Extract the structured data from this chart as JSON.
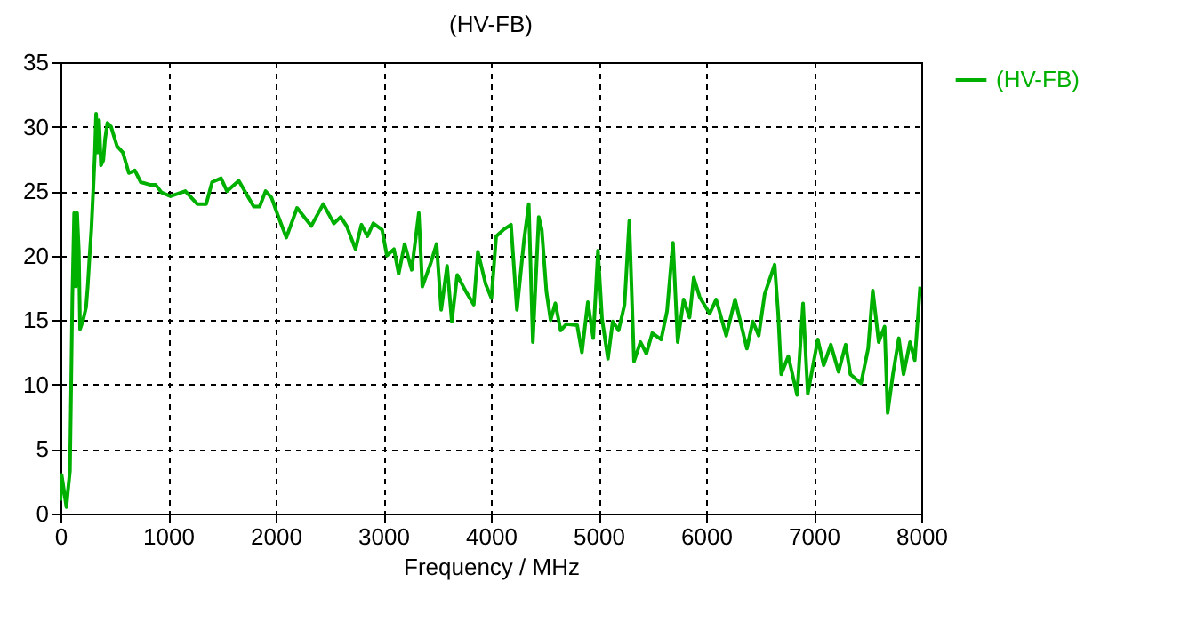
{
  "chart_data": {
    "type": "line",
    "title": "(HV-FB)",
    "xlabel": "Frequency / MHz",
    "x": [
      0,
      11,
      55,
      72,
      88,
      99,
      110,
      127,
      144,
      155,
      171,
      182,
      210,
      238,
      254,
      271,
      287,
      304,
      320,
      331,
      348,
      359,
      376,
      398,
      414,
      436,
      470,
      525,
      580,
      635,
      691,
      746,
      829,
      884,
      939,
      1022,
      1160,
      1271,
      1354,
      1409,
      1492,
      1547,
      1657,
      1796,
      1851,
      1906,
      1961,
      2017,
      2099,
      2199,
      2265,
      2331,
      2442,
      2541,
      2604,
      2659,
      2742,
      2797,
      2852,
      2907,
      2989,
      3033,
      3099,
      3143,
      3198,
      3264,
      3330,
      3363,
      3440,
      3495,
      3538,
      3593,
      3637,
      3687,
      3769,
      3841,
      3879,
      3951,
      4005,
      4049,
      4115,
      4187,
      4242,
      4308,
      4352,
      4390,
      4445,
      4473,
      4516,
      4555,
      4599,
      4648,
      4703,
      4802,
      4846,
      4901,
      4951,
      4995,
      5033,
      5088,
      5132,
      5187,
      5242,
      5286,
      5330,
      5390,
      5445,
      5500,
      5582,
      5637,
      5692,
      5736,
      5791,
      5846,
      5885,
      5940,
      6033,
      6093,
      6187,
      6269,
      6379,
      6434,
      6489,
      6544,
      6637,
      6670,
      6698,
      6764,
      6846,
      6901,
      6945,
      7038,
      7093,
      7159,
      7231,
      7297,
      7341,
      7440,
      7506,
      7549,
      7604,
      7659,
      7687,
      7736,
      7791,
      7835,
      7895,
      7939,
      7989
    ],
    "series": [
      {
        "name": "(HV-FB)",
        "color": "#00b000",
        "values": [
          1.0,
          3,
          0.5,
          2,
          3.3,
          9.7,
          16.6,
          23.3,
          17.6,
          23.3,
          20.3,
          14.3,
          15,
          16,
          17.7,
          20,
          22,
          25,
          28,
          31,
          28,
          30.5,
          27,
          27.4,
          29,
          30.3,
          30,
          28.5,
          28,
          26.4,
          26.6,
          25.7,
          25.5,
          25.5,
          24.9,
          24.6,
          25,
          24,
          24,
          25.7,
          26,
          25,
          25.8,
          23.8,
          23.8,
          25,
          24.5,
          23.2,
          21.4,
          23.7,
          23,
          22.3,
          24,
          22.5,
          23,
          22.3,
          20.5,
          22.4,
          21.5,
          22.5,
          22,
          20,
          20.5,
          18.6,
          20.9,
          18.9,
          23.3,
          17.6,
          19.4,
          20.9,
          15.8,
          19.2,
          14.9,
          18.5,
          17.2,
          16.2,
          20.3,
          17.8,
          16.7,
          21.5,
          22,
          22.4,
          15.8,
          21.2,
          24,
          13.3,
          23,
          22,
          17.2,
          15,
          16.3,
          14.2,
          14.7,
          14.6,
          12.5,
          16.4,
          13.6,
          20.4,
          15.1,
          12,
          14.9,
          14.2,
          16.2,
          22.7,
          11.8,
          13.3,
          12.4,
          14,
          13.5,
          15.7,
          21,
          13.3,
          16.6,
          15.2,
          18.3,
          16.8,
          15.5,
          16.6,
          13.8,
          16.6,
          12.8,
          14.9,
          13.8,
          17,
          19.3,
          15.5,
          10.8,
          12.2,
          9.2,
          16.3,
          9.3,
          13.5,
          11.5,
          13.1,
          11,
          13.1,
          10.8,
          10.1,
          12.8,
          17.3,
          13.3,
          14.5,
          7.8,
          10.8,
          13.6,
          10.8,
          13.3,
          11.9,
          17.6
        ]
      }
    ],
    "xlim": [
      0,
      8000
    ],
    "xticks": [
      0,
      1000,
      2000,
      3000,
      4000,
      5000,
      6000,
      7000,
      8000
    ],
    "ylim": [
      0,
      35
    ],
    "yticks": [
      0,
      5,
      10,
      15,
      20,
      25,
      30,
      35
    ],
    "grid": true,
    "legend": "top right",
    "marker": "none",
    "line_style": "solid"
  }
}
